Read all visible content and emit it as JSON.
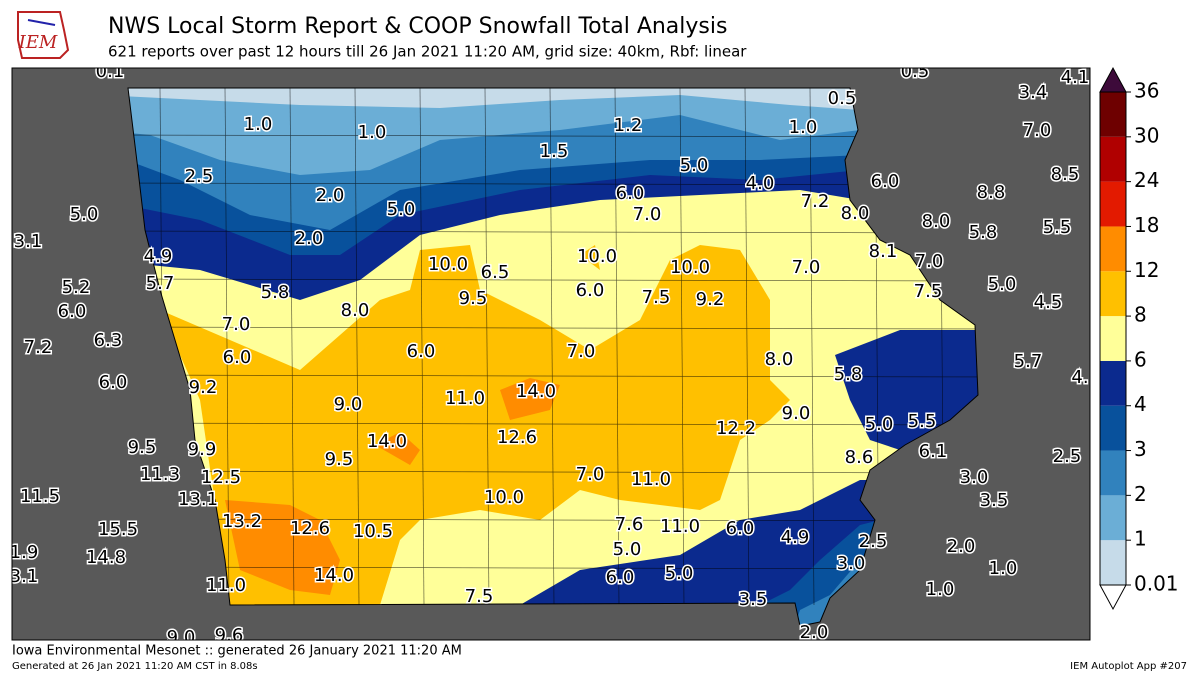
{
  "header": {
    "title": "NWS Local Storm Report & COOP Snowfall Total Analysis",
    "subtitle": "621 reports over past 12 hours till 26 Jan 2021 11:20 AM, grid size: 40km, Rbf: linear",
    "logo": "IEM"
  },
  "colorbar": {
    "ticks": [
      0.01,
      1,
      2,
      3,
      4,
      6,
      8,
      12,
      18,
      24,
      30,
      36
    ],
    "colors": [
      "#c6dbe9",
      "#6baed6",
      "#3182bd",
      "#08519c",
      "#0b2a8e",
      "#ffff99",
      "#ffc000",
      "#ff8c00",
      "#e31a00",
      "#b00000",
      "#6e0000"
    ],
    "over_color": "#3d0a3a",
    "under_color": "#ffffff"
  },
  "labels": [
    "0.1",
    "0.5",
    "4.1",
    "3.4",
    "0.5",
    "1.0",
    "1.0",
    "1.2",
    "1.0",
    "7.0",
    "1.5",
    "5.0",
    "2.5",
    "8.5",
    "4.0",
    "6.0",
    "6.0",
    "8.8",
    "2.0",
    "7.2",
    "5.0",
    "7.0",
    "8.0",
    "5.0",
    "8.0",
    "5.5",
    "5.8",
    "3.1",
    "2.0",
    "8.1",
    "4.9",
    "10.0",
    "7.0",
    "10.0",
    "6.5",
    "10.0",
    "7.0",
    "5.7",
    "5.2",
    "5.0",
    "6.0",
    "7.5",
    "9.2",
    "7.5",
    "5.8",
    "9.5",
    "4.5",
    "6.0",
    "8.0",
    "7.0",
    "6.3",
    "7.2",
    "6.0",
    "7.0",
    "8.0",
    "6.0",
    "5.7",
    "5.8",
    "4.",
    "6.0",
    "9.2",
    "14.0",
    "11.0",
    "9.0",
    "9.0",
    "5.0",
    "5.5",
    "12.2",
    "12.6",
    "14.0",
    "9.5",
    "9.9",
    "6.1",
    "2.5",
    "8.6",
    "9.5",
    "11.3",
    "7.0",
    "12.5",
    "3.0",
    "11.0",
    "11.5",
    "13.1",
    "10.0",
    "3.5",
    "13.2",
    "7.6",
    "11.0",
    "6.0",
    "12.6",
    "15.5",
    "10.5",
    "4.9",
    "2.5",
    "2.0",
    "5.0",
    "1.9",
    "14.8",
    "3.0",
    "1.0",
    "6.0",
    "5.0",
    "3.1",
    "14.0",
    "11.0",
    "1.0",
    "7.5",
    "3.5",
    "2.0",
    "9.0",
    "9.6"
  ],
  "footer": {
    "left": "Iowa Environmental Mesonet :: generated 26 January 2021 11:20 AM",
    "generated": "Generated at 26 Jan 2021 11:20 AM CST in 8.08s",
    "app": "IEM Autoplot App #207"
  }
}
